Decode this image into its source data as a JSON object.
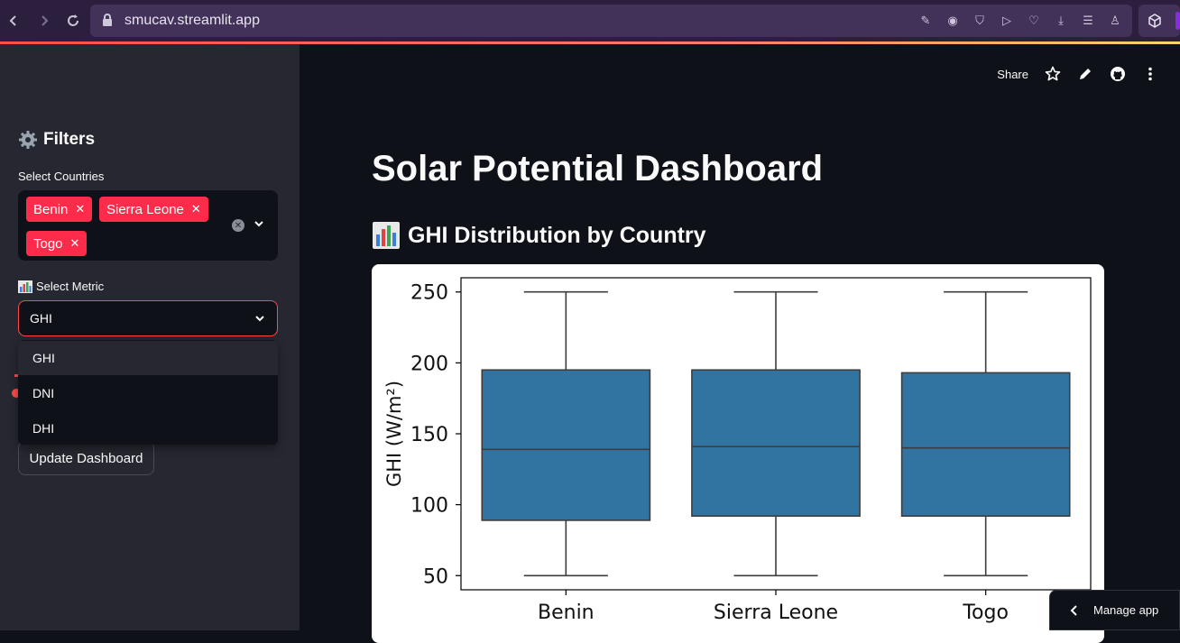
{
  "browser": {
    "url": "smucav.streamlit.app"
  },
  "sidebar": {
    "title": "Filters",
    "countries_label": "Select Countries",
    "selected_countries": [
      "Benin",
      "Sierra Leone",
      "Togo"
    ],
    "metric_label": "Select Metric",
    "metric_value": "GHI",
    "metric_options": [
      "GHI",
      "DNI",
      "DHI"
    ],
    "update_button": "Update Dashboard"
  },
  "toolbar": {
    "share": "Share"
  },
  "main": {
    "title": "Solar Potential Dashboard",
    "section_title": "GHI Distribution by Country"
  },
  "manage_app": "Manage app",
  "colors": {
    "accent": "#ff4b4b",
    "chip": "#ff2b4a",
    "box_fill": "#3274a1",
    "sidebar_bg": "#262730",
    "main_bg": "#0e1117"
  },
  "chart_data": {
    "type": "box",
    "categories": [
      "Benin",
      "Sierra Leone",
      "Togo"
    ],
    "ylabel": "GHI (W/m²)",
    "xlabel": "",
    "ylim": [
      40,
      260
    ],
    "yticks": [
      50,
      100,
      150,
      200,
      250
    ],
    "boxes": [
      {
        "name": "Benin",
        "min": 50,
        "q1": 89,
        "median": 139,
        "q3": 195,
        "max": 250
      },
      {
        "name": "Sierra Leone",
        "min": 50,
        "q1": 92,
        "median": 141,
        "q3": 195,
        "max": 250
      },
      {
        "name": "Togo",
        "min": 50,
        "q1": 92,
        "median": 140,
        "q3": 193,
        "max": 250
      }
    ]
  }
}
